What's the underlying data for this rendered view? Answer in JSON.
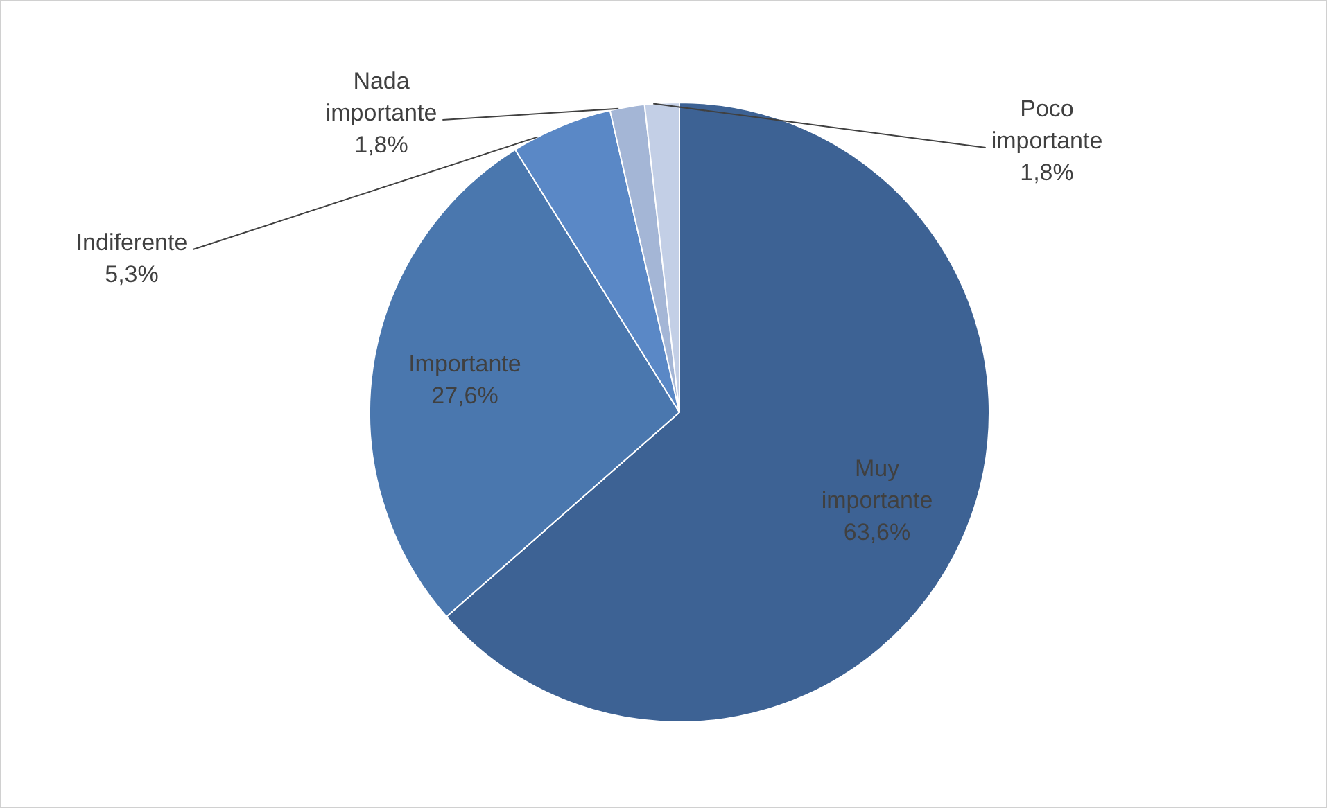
{
  "chart_data": {
    "type": "pie",
    "categories": [
      "Muy importante",
      "Importante",
      "Indiferente",
      "Nada importante",
      "Poco importante"
    ],
    "values": [
      63.6,
      27.6,
      5.3,
      1.8,
      1.8
    ],
    "value_labels": [
      "63,6%",
      "27,6%",
      "5,3%",
      "1,8%",
      "1,8%"
    ],
    "colors": [
      "#3d6294",
      "#4a77ae",
      "#5a88c6",
      "#a4b6d6",
      "#c3cfe6"
    ],
    "legend": false
  }
}
